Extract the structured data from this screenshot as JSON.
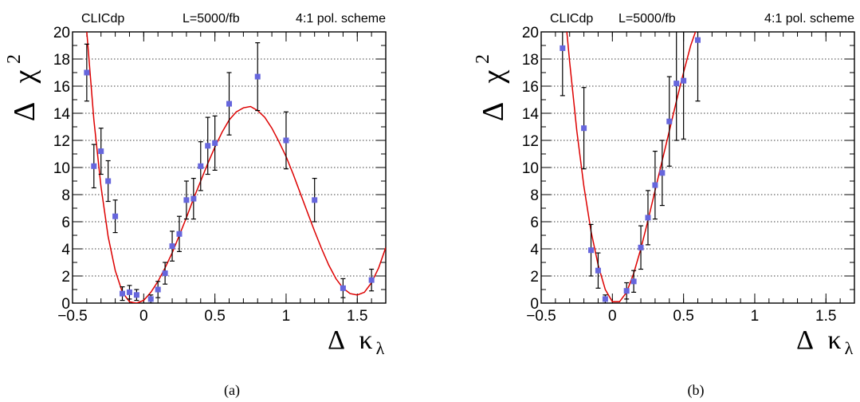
{
  "chart_data": [
    {
      "type": "scatter",
      "panel_caption": "(a)",
      "header": {
        "experiment": "CLICdp",
        "luminosity": "L=5000/fb",
        "scheme": "4:1 pol. scheme"
      },
      "xlabel": {
        "delta": "Δ",
        "kappa": "κ",
        "sub": "λ"
      },
      "ylabel": {
        "delta": "Δ",
        "chi": "χ",
        "sup": "2"
      },
      "xlim": [
        -0.5,
        1.7
      ],
      "ylim": [
        0,
        20
      ],
      "xticks": [
        "−0.5",
        "0",
        "0.5",
        "1",
        "1.5"
      ],
      "yticks": [
        "0",
        "2",
        "4",
        "6",
        "8",
        "10",
        "12",
        "14",
        "16",
        "18",
        "20"
      ],
      "grid": "horizontal-dotted",
      "series": [
        {
          "type": "points-with-errors",
          "color": "#6666dd",
          "points": [
            {
              "x": -0.4,
              "y": 17.0,
              "err": 2.1
            },
            {
              "x": -0.35,
              "y": 10.1,
              "err": 1.6
            },
            {
              "x": -0.3,
              "y": 11.2,
              "err": 1.7
            },
            {
              "x": -0.25,
              "y": 9.0,
              "err": 1.5
            },
            {
              "x": -0.2,
              "y": 6.4,
              "err": 1.2
            },
            {
              "x": -0.15,
              "y": 0.7,
              "err": 0.5
            },
            {
              "x": -0.1,
              "y": 0.8,
              "err": 0.5
            },
            {
              "x": -0.05,
              "y": 0.6,
              "err": 0.4
            },
            {
              "x": 0.05,
              "y": 0.3,
              "err": 0.3
            },
            {
              "x": 0.1,
              "y": 1.0,
              "err": 0.6
            },
            {
              "x": 0.15,
              "y": 2.2,
              "err": 0.8
            },
            {
              "x": 0.2,
              "y": 4.2,
              "err": 1.1
            },
            {
              "x": 0.25,
              "y": 5.1,
              "err": 1.3
            },
            {
              "x": 0.3,
              "y": 7.6,
              "err": 1.4
            },
            {
              "x": 0.35,
              "y": 7.7,
              "err": 1.5
            },
            {
              "x": 0.4,
              "y": 10.1,
              "err": 1.8
            },
            {
              "x": 0.45,
              "y": 11.6,
              "err": 2.1
            },
            {
              "x": 0.5,
              "y": 11.8,
              "err": 2.0
            },
            {
              "x": 0.6,
              "y": 14.7,
              "err": 2.3
            },
            {
              "x": 0.8,
              "y": 16.7,
              "err": 2.5
            },
            {
              "x": 1.0,
              "y": 12.0,
              "err": 2.1
            },
            {
              "x": 1.2,
              "y": 7.6,
              "err": 1.6
            },
            {
              "x": 1.4,
              "y": 1.1,
              "err": 0.7
            },
            {
              "x": 1.6,
              "y": 1.7,
              "err": 0.8
            }
          ]
        },
        {
          "type": "fit-curve",
          "color": "#dd0000",
          "x": [
            -0.4,
            -0.35,
            -0.3,
            -0.25,
            -0.2,
            -0.15,
            -0.1,
            -0.05,
            0.0,
            0.05,
            0.1,
            0.15,
            0.2,
            0.25,
            0.3,
            0.35,
            0.4,
            0.45,
            0.5,
            0.55,
            0.6,
            0.65,
            0.7,
            0.75,
            0.8,
            0.85,
            0.9,
            0.95,
            1.0,
            1.05,
            1.1,
            1.15,
            1.2,
            1.25,
            1.3,
            1.35,
            1.4,
            1.45,
            1.5,
            1.55,
            1.6,
            1.65,
            1.7
          ],
          "y": [
            20.0,
            13.5,
            8.6,
            4.9,
            2.4,
            0.8,
            0.1,
            0.0,
            0.2,
            0.8,
            1.6,
            2.6,
            3.7,
            5.0,
            6.3,
            7.7,
            9.0,
            10.3,
            11.5,
            12.6,
            13.5,
            14.1,
            14.4,
            14.5,
            14.2,
            13.7,
            12.9,
            11.9,
            10.8,
            9.5,
            8.1,
            6.7,
            5.3,
            4.0,
            2.8,
            1.8,
            1.1,
            0.7,
            0.6,
            0.8,
            1.5,
            2.6,
            4.1
          ]
        }
      ]
    },
    {
      "type": "scatter",
      "panel_caption": "(b)",
      "header": {
        "experiment": "CLICdp",
        "luminosity": "L=5000/fb",
        "scheme": "4:1 pol. scheme"
      },
      "xlabel": {
        "delta": "Δ",
        "kappa": "κ",
        "sub": "λ"
      },
      "ylabel": {
        "delta": "Δ",
        "chi": "χ",
        "sup": "2"
      },
      "xlim": [
        -0.5,
        1.7
      ],
      "ylim": [
        0,
        20
      ],
      "xticks": [
        "−0.5",
        "0",
        "0.5",
        "1",
        "1.5"
      ],
      "yticks": [
        "0",
        "2",
        "4",
        "6",
        "8",
        "10",
        "12",
        "14",
        "16",
        "18",
        "20"
      ],
      "grid": "horizontal-dotted",
      "series": [
        {
          "type": "points-with-errors",
          "color": "#6666dd",
          "points": [
            {
              "x": -0.35,
              "y": 18.8,
              "err": 3.5
            },
            {
              "x": -0.2,
              "y": 12.9,
              "err": 3.0
            },
            {
              "x": -0.15,
              "y": 3.9,
              "err": 1.9
            },
            {
              "x": -0.1,
              "y": 2.4,
              "err": 1.3
            },
            {
              "x": -0.05,
              "y": 0.3,
              "err": 0.3
            },
            {
              "x": 0.1,
              "y": 0.9,
              "err": 0.6
            },
            {
              "x": 0.15,
              "y": 1.6,
              "err": 0.8
            },
            {
              "x": 0.2,
              "y": 4.1,
              "err": 1.6
            },
            {
              "x": 0.25,
              "y": 6.3,
              "err": 2.0
            },
            {
              "x": 0.3,
              "y": 8.7,
              "err": 2.5
            },
            {
              "x": 0.35,
              "y": 9.6,
              "err": 2.4
            },
            {
              "x": 0.4,
              "y": 13.4,
              "err": 3.3
            },
            {
              "x": 0.45,
              "y": 16.2,
              "err": 4.2
            },
            {
              "x": 0.5,
              "y": 16.4,
              "err": 4.3
            },
            {
              "x": 0.6,
              "y": 19.4,
              "err": 4.5
            }
          ]
        },
        {
          "type": "fit-curve",
          "color": "#dd0000",
          "x": [
            -0.32,
            -0.3,
            -0.25,
            -0.2,
            -0.15,
            -0.1,
            -0.05,
            0.0,
            0.05,
            0.1,
            0.15,
            0.2,
            0.25,
            0.3,
            0.35,
            0.4,
            0.45,
            0.5,
            0.55,
            0.6,
            0.65
          ],
          "y": [
            20.0,
            17.8,
            12.7,
            8.6,
            5.3,
            2.8,
            1.0,
            0.1,
            0.1,
            0.8,
            2.2,
            4.0,
            6.1,
            8.3,
            10.5,
            12.7,
            14.9,
            17.0,
            19.0,
            20.5,
            22.0
          ]
        }
      ]
    }
  ]
}
